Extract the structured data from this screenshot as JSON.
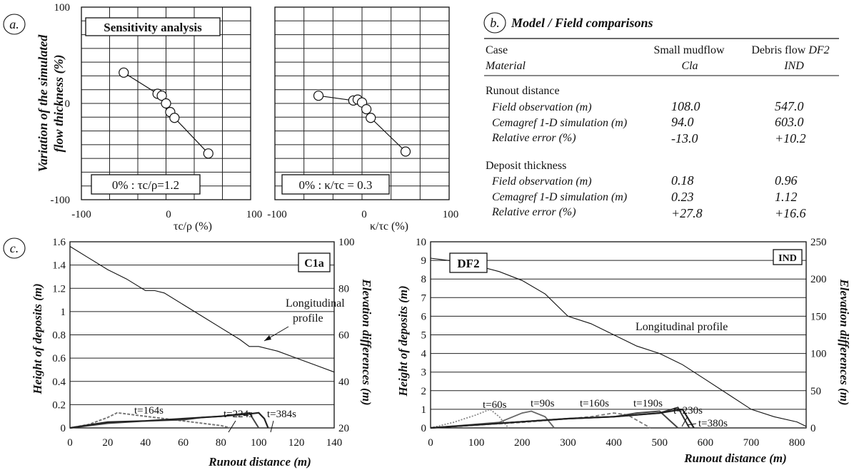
{
  "panel_a": {
    "tag": "a.",
    "title": "Sensitivity analysis",
    "ylabel_line1": "Variation of the simulated",
    "ylabel_line2": "flow thickness (%)",
    "yticks": [
      "100",
      "0",
      "-100"
    ],
    "left_plot": {
      "xticks": [
        "-100",
        "0",
        "100"
      ],
      "xlabel": "τc/ρ (%)",
      "ref": "0% : τc/ρ=1.2"
    },
    "right_plot": {
      "xticks": [
        "-100",
        "0",
        "100"
      ],
      "xlabel": "κ/τc (%)",
      "ref": "0% : κ/τc = 0.3"
    }
  },
  "panel_b": {
    "tag": "b.",
    "title": "Model / Field comparisons",
    "header": {
      "case": "Case",
      "col1": "Small mudflow",
      "col2_prefix": "Debris flow ",
      "col2_it": "DF2"
    },
    "material_row": {
      "label": "Material",
      "v1": "Cla",
      "v2": "IND"
    },
    "sections": [
      {
        "title": "Runout distance",
        "rows": [
          {
            "label": "Field observation (m)",
            "v1": "108.0",
            "v2": "547.0"
          },
          {
            "label": "Cemagref 1-D simulation (m)",
            "v1": "94.0",
            "v2": "603.0"
          },
          {
            "label": "Relative error (%)",
            "v1": "-13.0",
            "v2": "+10.2"
          }
        ]
      },
      {
        "title": "Deposit thickness",
        "rows": [
          {
            "label": "Field observation (m)",
            "v1": "0.18",
            "v2": "0.96"
          },
          {
            "label": "Cemagref 1-D simulation (m)",
            "v1": "0.23",
            "v2": "1.12"
          },
          {
            "label": "Relative error (%)",
            "v1": "+27.8",
            "v2": "+16.6"
          }
        ]
      }
    ]
  },
  "panel_c": {
    "tag": "c.",
    "ylabel_left": "Height of deposits (m)",
    "ylabel_right": "Elevation differences (m)",
    "xlabel": "Runout distance (m)",
    "left": {
      "box_label": "C1a",
      "profile_label_1": "Longitudinal",
      "profile_label_2": "profile",
      "yticks_left": [
        "1.6",
        "1.4",
        "1.2",
        "1",
        "0.8",
        "0.6",
        "0.4",
        "0.2",
        "0"
      ],
      "yticks_right": [
        "100",
        "80",
        "60",
        "40",
        "20"
      ],
      "xticks": [
        "0",
        "20",
        "40",
        "60",
        "80",
        "100",
        "120",
        "140"
      ],
      "time_labels": [
        "t=164s",
        "t=224s",
        "t=384s"
      ]
    },
    "right": {
      "box_label_1": "DF2",
      "box_label_2": "IND",
      "profile_label": "Longitudinal  profile",
      "yticks_left": [
        "10",
        "9",
        "8",
        "7",
        "6",
        "5",
        "4",
        "3",
        "2",
        "1",
        "0"
      ],
      "yticks_right": [
        "250",
        "200",
        "150",
        "100",
        "50",
        "0"
      ],
      "xticks": [
        "0",
        "100",
        "200",
        "300",
        "400",
        "500",
        "600",
        "700",
        "800"
      ],
      "time_labels": [
        "t=60s",
        "t=90s",
        "t=160s",
        "t=190s",
        "t=230s",
        "t=380s"
      ]
    }
  },
  "chart_data": [
    {
      "type": "line",
      "title": "Sensitivity analysis",
      "xlabel": "τc/ρ (%)",
      "ylabel": "Variation of the simulated flow thickness (%)",
      "xlim": [
        -100,
        100
      ],
      "ylim": [
        -100,
        100
      ],
      "x": [
        -50,
        -10,
        -5,
        0,
        5,
        10,
        50
      ],
      "y": [
        32,
        10,
        8,
        0,
        -9,
        -15,
        -52
      ]
    },
    {
      "type": "line",
      "xlabel": "κ/τc (%)",
      "ylabel": "Variation of the simulated flow thickness (%)",
      "xlim": [
        -100,
        100
      ],
      "ylim": [
        -100,
        100
      ],
      "x": [
        -50,
        -10,
        -5,
        0,
        5,
        10,
        50
      ],
      "y": [
        8,
        3,
        4,
        1,
        -6,
        -15,
        -50
      ]
    },
    {
      "type": "line",
      "xlabel": "Runout distance (m)",
      "ylabel": "Height of deposits (m)",
      "xlim": [
        0,
        140
      ],
      "ylim": [
        0,
        1.6
      ],
      "series": [
        {
          "name": "Longitudinal profile",
          "axis": "right",
          "unit": "m",
          "x": [
            0,
            10,
            20,
            30,
            40,
            45,
            50,
            60,
            70,
            80,
            90,
            95,
            100,
            110,
            120,
            130,
            140
          ],
          "y": [
            98,
            93,
            88,
            84,
            79,
            79,
            78,
            73,
            68,
            63,
            58,
            55,
            55,
            53,
            50,
            47,
            44
          ]
        },
        {
          "name": "t=164s",
          "x": [
            0,
            10,
            20,
            25,
            30,
            40,
            50,
            60,
            70,
            80,
            85
          ],
          "y": [
            0,
            0.03,
            0.09,
            0.13,
            0.12,
            0.1,
            0.08,
            0.06,
            0.04,
            0.02,
            0
          ]
        },
        {
          "name": "t=224s",
          "x": [
            0,
            20,
            40,
            60,
            70,
            80,
            90,
            95,
            100
          ],
          "y": [
            0,
            0.04,
            0.06,
            0.07,
            0.09,
            0.1,
            0.12,
            0.13,
            0
          ]
        },
        {
          "name": "t=384s",
          "x": [
            0,
            20,
            40,
            60,
            80,
            95,
            100,
            103,
            105
          ],
          "y": [
            0,
            0.05,
            0.06,
            0.08,
            0.1,
            0.12,
            0.13,
            0.08,
            0
          ]
        }
      ],
      "right_axis": {
        "label": "Elevation differences (m)",
        "ylim": [
          20,
          100
        ]
      }
    },
    {
      "type": "line",
      "xlabel": "Runout distance (m)",
      "ylabel": "Height of deposits (m)",
      "xlim": [
        0,
        820
      ],
      "ylim": [
        0,
        10
      ],
      "series": [
        {
          "name": "Longitudinal profile",
          "axis": "right",
          "unit": "m",
          "x": [
            0,
            50,
            100,
            150,
            200,
            250,
            300,
            350,
            400,
            450,
            500,
            550,
            600,
            650,
            700,
            750,
            800,
            820
          ],
          "y": [
            228,
            224,
            218,
            210,
            198,
            180,
            150,
            140,
            125,
            110,
            100,
            85,
            65,
            45,
            25,
            15,
            8,
            2
          ]
        },
        {
          "name": "t=60s",
          "x": [
            0,
            50,
            100,
            130,
            150,
            170
          ],
          "y": [
            0,
            0.3,
            0.7,
            1.0,
            0.6,
            0
          ]
        },
        {
          "name": "t=90s",
          "x": [
            0,
            150,
            200,
            220,
            250,
            270
          ],
          "y": [
            0,
            0.3,
            0.8,
            0.9,
            0.6,
            0
          ]
        },
        {
          "name": "t=160s",
          "x": [
            0,
            200,
            300,
            350,
            400,
            430,
            480
          ],
          "y": [
            0,
            0.3,
            0.5,
            0.6,
            0.8,
            0.7,
            0
          ]
        },
        {
          "name": "t=190s",
          "x": [
            0,
            300,
            400,
            450,
            500,
            540
          ],
          "y": [
            0,
            0.5,
            0.6,
            0.8,
            0.9,
            0
          ]
        },
        {
          "name": "t=230s",
          "x": [
            0,
            300,
            400,
            500,
            540,
            565
          ],
          "y": [
            0,
            0.5,
            0.6,
            0.8,
            1.1,
            0
          ]
        },
        {
          "name": "t=380s",
          "x": [
            0,
            300,
            400,
            500,
            550,
            575
          ],
          "y": [
            0,
            0.5,
            0.6,
            0.8,
            1.0,
            0
          ]
        }
      ],
      "right_axis": {
        "label": "Elevation differences (m)",
        "ylim": [
          0,
          250
        ]
      }
    }
  ]
}
